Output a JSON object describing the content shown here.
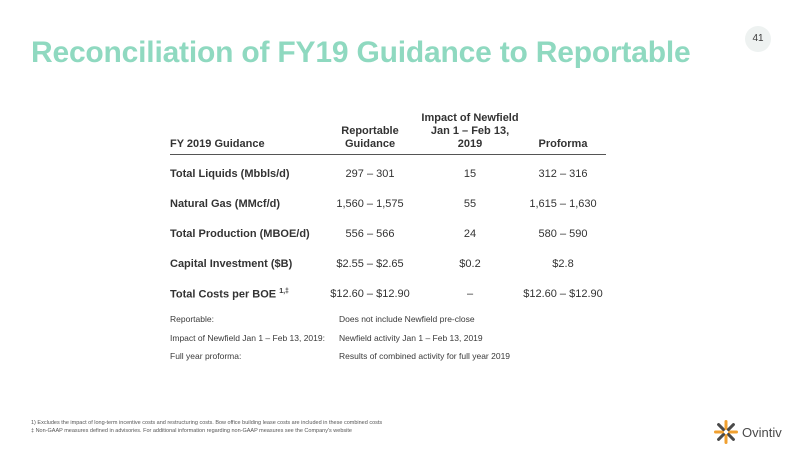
{
  "page": {
    "title": "Reconciliation of FY19 Guidance to Reportable",
    "page_number": "41",
    "accent_color": "#8fd9c0"
  },
  "table": {
    "headers": [
      "FY 2019 Guidance",
      "Reportable\nGuidance",
      "Impact of Newfield\nJan 1 – Feb 13,\n2019",
      "Proforma"
    ],
    "rows": [
      {
        "label": "Total Liquids (Mbbls/d)",
        "sup": "",
        "reportable": "297 – 301",
        "impact": "15",
        "proforma": "312 – 316"
      },
      {
        "label": "Natural Gas (MMcf/d)",
        "sup": "",
        "reportable": "1,560 – 1,575",
        "impact": "55",
        "proforma": "1,615 – 1,630"
      },
      {
        "label": "Total Production (MBOE/d)",
        "sup": "",
        "reportable": "556 – 566",
        "impact": "24",
        "proforma": "580 – 590"
      },
      {
        "label": "Capital Investment ($B)",
        "sup": "",
        "reportable": "$2.55 – $2.65",
        "impact": "$0.2",
        "proforma": "$2.8"
      },
      {
        "label": "Total Costs per BOE",
        "sup": "1,‡",
        "reportable": "$12.60 – $12.90",
        "impact": "–",
        "proforma": "$12.60 – $12.90"
      }
    ]
  },
  "notes": [
    {
      "key": "Reportable:",
      "value": "Does not include Newfield pre-close"
    },
    {
      "key": "Impact of Newfield Jan 1 – Feb 13, 2019:",
      "value": "Newfield activity Jan 1 – Feb 13, 2019"
    },
    {
      "key": "Full year proforma:",
      "value": "Results of combined activity for full year 2019"
    }
  ],
  "footnotes": [
    "1) Excludes the impact of long-term incentive costs and restructuring costs. Bow office building lease costs are included in these combined costs",
    "‡ Non-GAAP measures defined in advisories. For additional information regarding non-GAAP measures see the Company's website"
  ],
  "logo": {
    "name": "Ovintiv",
    "icon": "ovintiv-star-logo-icon",
    "colors": [
      "#f0a030",
      "#8fd9c0",
      "#4a4a4a"
    ]
  }
}
